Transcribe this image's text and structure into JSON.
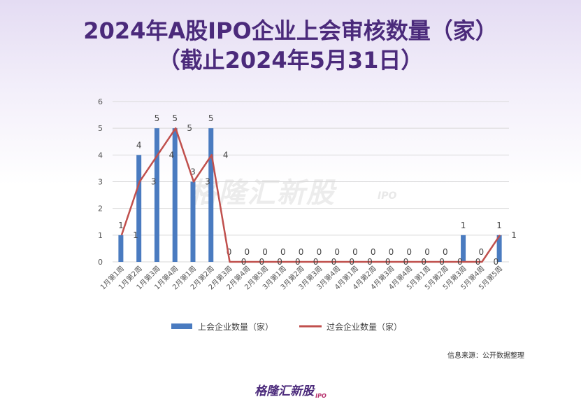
{
  "title_line1": "2024年A股IPO企业上会审核数量（家）",
  "title_line2": "（截止2024年5月31日）",
  "source": "信息来源：公开数据整理",
  "brand": "格隆汇新股",
  "brand_sub": "IPO",
  "watermark": "格隆汇新股",
  "watermark_sub": "IPO",
  "colors": {
    "bar": "#4a7bc0",
    "line": "#c0504d",
    "title": "#4b2a7b"
  },
  "chart_data": {
    "type": "bar",
    "categories": [
      "1月第1周",
      "1月第2周",
      "1月第3周",
      "1月第4周",
      "2月第1周",
      "2月第2周",
      "2月第3周",
      "2月第4周",
      "2月第5周",
      "3月第1周",
      "3月第2周",
      "3月第3周",
      "3月第4周",
      "4月第1周",
      "4月第2周",
      "4月第3周",
      "4月第4周",
      "5月第1周",
      "5月第2周",
      "5月第3周",
      "5月第4周",
      "5月第5周"
    ],
    "ylim": [
      0,
      6
    ],
    "yticks": [
      0,
      1,
      2,
      3,
      4,
      5,
      6
    ],
    "grid": true,
    "legend_position": "bottom",
    "series": [
      {
        "name": "上会企业数量（家）",
        "kind": "bar",
        "values": [
          1,
          4,
          5,
          5,
          3,
          5,
          0,
          0,
          0,
          0,
          0,
          0,
          0,
          0,
          0,
          0,
          0,
          0,
          0,
          1,
          0,
          1
        ]
      },
      {
        "name": "过会企业数量（家）",
        "kind": "line",
        "values": [
          1,
          3,
          4,
          5,
          3,
          4,
          0,
          0,
          0,
          0,
          0,
          0,
          0,
          0,
          0,
          0,
          0,
          0,
          0,
          0,
          0,
          1
        ]
      }
    ]
  }
}
